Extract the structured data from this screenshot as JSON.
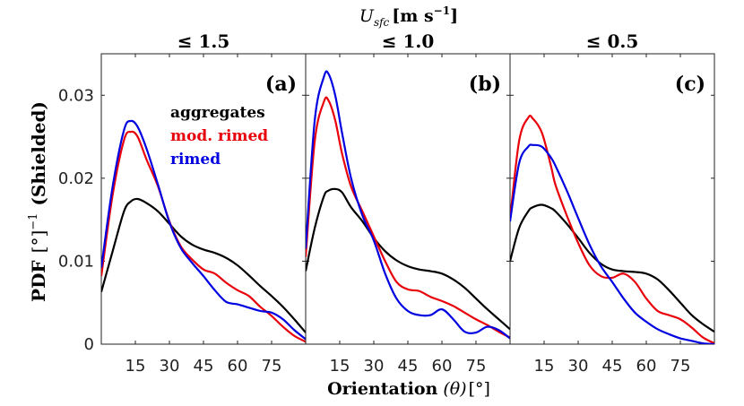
{
  "chart_data": {
    "type": "line",
    "super_title": "U",
    "super_title_sub": "sfc",
    "super_title_units": "[m s",
    "super_title_exp": "−1",
    "super_title_close": "]",
    "ylabel": "PDF",
    "ylabel_units": "[°]",
    "ylabel_exp": "−1",
    "ylabel_suffix": "(Shielded)",
    "xlabel": "Orientation",
    "xlabel_var": "(θ)",
    "xlabel_units": "[°]",
    "xlim": [
      0,
      90
    ],
    "ylim": [
      0,
      0.035
    ],
    "xticks": [
      15,
      30,
      45,
      60,
      75
    ],
    "xtick_labels": [
      "15",
      "30",
      "45",
      "60",
      "75"
    ],
    "yticks": [
      0,
      0.01,
      0.02,
      0.03
    ],
    "ytick_labels": [
      "0",
      "0.01",
      "0.02",
      "0.03"
    ],
    "series_colors": {
      "aggregates": "#000000",
      "mod. rimed": "#e8000b",
      "rimed": "#0000e0"
    },
    "legend": [
      {
        "key": "aggregates",
        "label": "aggregates",
        "color": "#000000"
      },
      {
        "key": "mod. rimed",
        "label": "mod. rimed",
        "color": "#e8000b"
      },
      {
        "key": "rimed",
        "label": "rimed",
        "color": "#0000e0"
      }
    ],
    "panels": [
      {
        "title": "≤ 1.5",
        "label": "(a)",
        "x": [
          0,
          5,
          10,
          13,
          16,
          20,
          25,
          30,
          35,
          40,
          45,
          50,
          55,
          60,
          65,
          70,
          75,
          80,
          85,
          90
        ],
        "series": [
          {
            "name": "aggregates",
            "values": [
              0.0063,
              0.0112,
              0.016,
              0.0172,
              0.0175,
              0.017,
              0.016,
              0.0145,
              0.013,
              0.012,
              0.0114,
              0.011,
              0.0104,
              0.0095,
              0.0083,
              0.007,
              0.0058,
              0.0045,
              0.003,
              0.0014
            ]
          },
          {
            "name": "mod. rimed",
            "values": [
              0.0082,
              0.018,
              0.0246,
              0.0256,
              0.025,
              0.0222,
              0.019,
              0.0148,
              0.0118,
              0.0102,
              0.009,
              0.0085,
              0.0074,
              0.0065,
              0.0058,
              0.0045,
              0.0034,
              0.0021,
              0.001,
              0.0003
            ]
          },
          {
            "name": "rimed",
            "values": [
              0.0092,
              0.019,
              0.0258,
              0.0269,
              0.0262,
              0.0235,
              0.0192,
              0.0147,
              0.0116,
              0.0098,
              0.0082,
              0.0065,
              0.0051,
              0.0048,
              0.0044,
              0.004,
              0.0038,
              0.003,
              0.0017,
              0.0006
            ]
          }
        ]
      },
      {
        "title": "≤ 1.0",
        "label": "(b)",
        "x": [
          0,
          4,
          8,
          10,
          13,
          16,
          20,
          25,
          30,
          35,
          40,
          45,
          50,
          55,
          60,
          65,
          70,
          75,
          80,
          85,
          90
        ],
        "series": [
          {
            "name": "aggregates",
            "values": [
              0.0088,
              0.014,
              0.0178,
              0.0185,
              0.0187,
              0.0183,
              0.0165,
              0.0148,
              0.0128,
              0.0112,
              0.0101,
              0.0094,
              0.009,
              0.0088,
              0.0085,
              0.0078,
              0.0068,
              0.0055,
              0.0042,
              0.003,
              0.0018
            ]
          },
          {
            "name": "mod. rimed",
            "values": [
              0.0105,
              0.0245,
              0.0292,
              0.0294,
              0.027,
              0.023,
              0.019,
              0.016,
              0.013,
              0.01,
              0.0075,
              0.0066,
              0.0064,
              0.0057,
              0.0052,
              0.0046,
              0.0038,
              0.003,
              0.0023,
              0.0015,
              0.0008
            ]
          },
          {
            "name": "rimed",
            "values": [
              0.0115,
              0.027,
              0.0322,
              0.0326,
              0.03,
              0.0255,
              0.02,
              0.0155,
              0.0125,
              0.0085,
              0.0055,
              0.004,
              0.0035,
              0.0035,
              0.0042,
              0.003,
              0.0015,
              0.0014,
              0.0021,
              0.0017,
              0.0007
            ]
          }
        ]
      },
      {
        "title": "≤ 0.5",
        "label": "(c)",
        "x": [
          0,
          4,
          8,
          10,
          14,
          18,
          20,
          25,
          30,
          35,
          40,
          45,
          50,
          55,
          60,
          65,
          70,
          75,
          80,
          85,
          90
        ],
        "series": [
          {
            "name": "aggregates",
            "values": [
              0.01,
              0.014,
              0.016,
              0.0165,
              0.0168,
              0.0164,
              0.016,
              0.0145,
              0.0128,
              0.011,
              0.0097,
              0.009,
              0.0088,
              0.0087,
              0.0085,
              0.0078,
              0.0065,
              0.005,
              0.0035,
              0.0024,
              0.0015
            ]
          },
          {
            "name": "mod. rimed",
            "values": [
              0.015,
              0.0245,
              0.0273,
              0.0272,
              0.0255,
              0.0215,
              0.0192,
              0.0155,
              0.0122,
              0.0095,
              0.0082,
              0.008,
              0.0085,
              0.0075,
              0.0055,
              0.004,
              0.0035,
              0.003,
              0.002,
              0.0008,
              0.0001
            ]
          },
          {
            "name": "rimed",
            "values": [
              0.0148,
              0.0218,
              0.0238,
              0.024,
              0.0238,
              0.0225,
              0.0215,
              0.0185,
              0.0152,
              0.012,
              0.0094,
              0.0075,
              0.0055,
              0.0038,
              0.0027,
              0.0018,
              0.0012,
              0.0007,
              0.0004,
              0.0001,
              0.0
            ]
          }
        ]
      }
    ]
  }
}
